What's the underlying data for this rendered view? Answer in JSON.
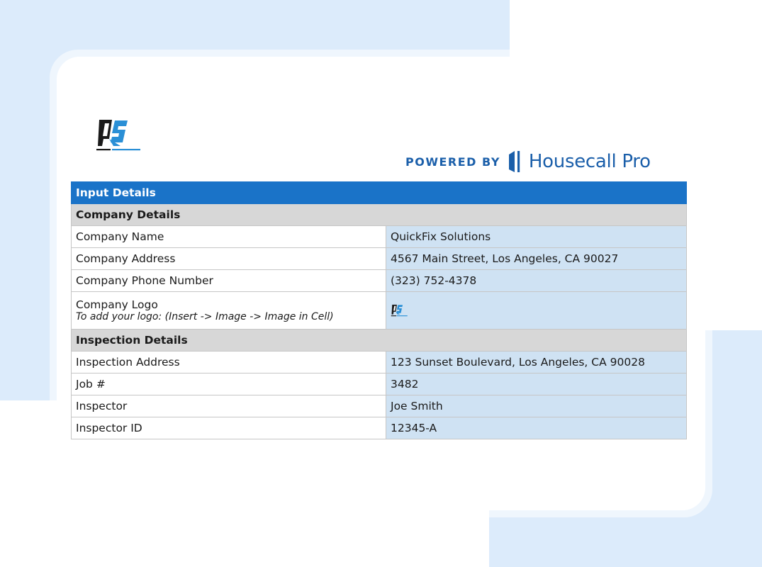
{
  "branding": {
    "powered_by": "POWERED BY",
    "platform_name": "Housecall Pro",
    "brand_color": "#1b5faa"
  },
  "company_logo": {
    "icon": "quickfix-solutions-logo-icon"
  },
  "sheet": {
    "title": "Input Details",
    "header_color": "#1a73c8",
    "value_cell_color": "#cfe2f3",
    "sections": [
      {
        "title": "Company Details",
        "rows": [
          {
            "label": "Company Name",
            "value": "QuickFix Solutions"
          },
          {
            "label": "Company Address",
            "value": "4567 Main Street, Los Angeles, CA 90027"
          },
          {
            "label": "Company Phone Number",
            "value": "(323) 752-4378"
          },
          {
            "label": "Company Logo",
            "hint": "To add your logo: (Insert -> Image -> Image in Cell)",
            "value_icon": "quickfix-solutions-logo-icon"
          }
        ]
      },
      {
        "title": "Inspection Details",
        "rows": [
          {
            "label": "Inspection Address",
            "value": "123 Sunset Boulevard, Los Angeles, CA 90028"
          },
          {
            "label": "Job #",
            "value": "3482"
          },
          {
            "label": "Inspector",
            "value": "Joe Smith"
          },
          {
            "label": "Inspector ID",
            "value": "12345-A"
          }
        ]
      }
    ]
  }
}
